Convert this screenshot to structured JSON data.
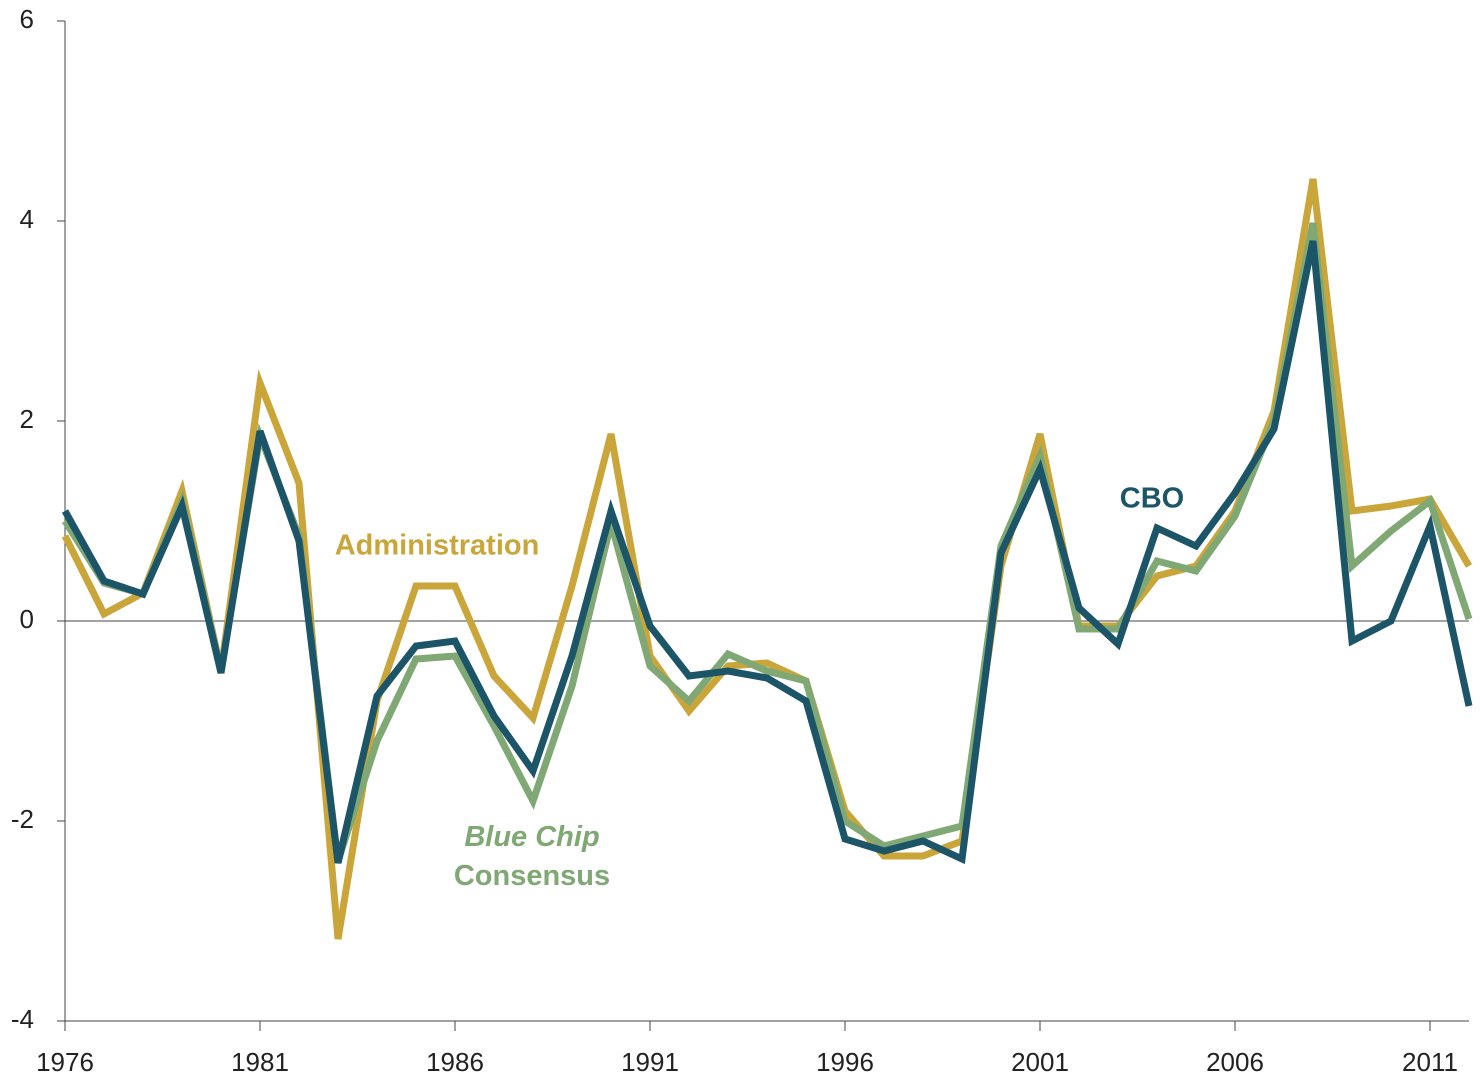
{
  "chart_data": {
    "type": "line",
    "x": [
      1976,
      1977,
      1978,
      1979,
      1980,
      1981,
      1982,
      1983,
      1984,
      1985,
      1986,
      1987,
      1988,
      1989,
      1990,
      1991,
      1992,
      1993,
      1994,
      1995,
      1996,
      1997,
      1998,
      1999,
      2000,
      2001,
      2002,
      2003,
      2004,
      2005,
      2006,
      2007,
      2008,
      2009,
      2010,
      2011,
      2012
    ],
    "series": [
      {
        "name": "Administration",
        "color": "#c9a53a",
        "values": [
          0.85,
          0.07,
          0.28,
          1.3,
          -0.5,
          2.38,
          1.38,
          -3.18,
          -0.8,
          0.35,
          0.35,
          -0.55,
          -0.97,
          0.35,
          1.87,
          -0.35,
          -0.9,
          -0.45,
          -0.42,
          -0.6,
          -1.9,
          -2.35,
          -2.35,
          -2.2,
          0.55,
          1.87,
          -0.05,
          -0.05,
          0.45,
          0.55,
          1.1,
          2.1,
          4.42,
          1.1,
          1.15,
          1.22,
          0.55
        ]
      },
      {
        "name": "Blue Chip Consensus",
        "color": "#7fa874",
        "values": [
          1.0,
          0.38,
          0.27,
          1.2,
          -0.5,
          1.85,
          0.85,
          -2.4,
          -1.2,
          -0.38,
          -0.35,
          -1.05,
          -1.8,
          -0.65,
          0.98,
          -0.45,
          -0.8,
          -0.33,
          -0.5,
          -0.6,
          -2.0,
          -2.25,
          -2.15,
          -2.05,
          0.75,
          1.65,
          -0.08,
          -0.08,
          0.6,
          0.5,
          1.05,
          2.0,
          3.98,
          0.55,
          0.9,
          1.2,
          0.02
        ]
      },
      {
        "name": "CBO",
        "color": "#1c5568",
        "values": [
          1.1,
          0.4,
          0.27,
          1.15,
          -0.52,
          1.9,
          0.8,
          -2.42,
          -0.75,
          -0.25,
          -0.2,
          -0.95,
          -1.5,
          -0.35,
          1.1,
          -0.05,
          -0.55,
          -0.5,
          -0.57,
          -0.8,
          -2.18,
          -2.3,
          -2.2,
          -2.38,
          0.68,
          1.52,
          0.13,
          -0.23,
          0.93,
          0.75,
          1.28,
          1.92,
          3.8,
          -0.2,
          0.0,
          0.95,
          -0.85
        ]
      }
    ],
    "xlim": [
      1976,
      2012
    ],
    "xticks": [
      1976,
      1981,
      1986,
      1991,
      1996,
      2001,
      2006,
      2011
    ],
    "ylim": [
      -4,
      6
    ],
    "yticks": [
      -4,
      -2,
      0,
      2,
      4,
      6
    ]
  }
}
